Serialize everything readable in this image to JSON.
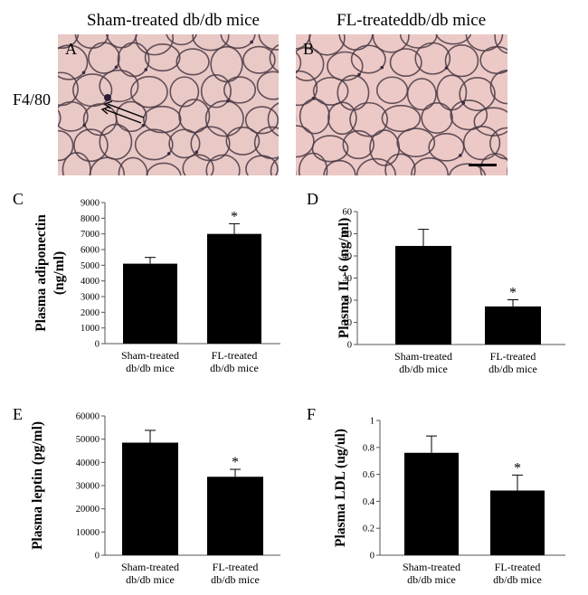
{
  "figure": {
    "col_titles": [
      "Sham-treated db/db mice",
      "FL-treateddb/db mice"
    ],
    "row_label": "F4/80",
    "micrographs": [
      {
        "label": "A",
        "tissue_color": "#e9c9c6",
        "membrane_color": "#4a3a44",
        "annotation": "double-arrow"
      },
      {
        "label": "B",
        "tissue_color": "#ecc9c6",
        "membrane_color": "#4a3a44",
        "annotation": "scale-bar"
      }
    ]
  },
  "chart_data": [
    {
      "panel": "C",
      "type": "bar",
      "ylabel": "Plasma adiponectin (ng/ml)",
      "ylabel_lines": [
        "Plasma adiponectin",
        "(ng/ml)"
      ],
      "categories": [
        [
          "Sham-treated",
          "db/db mice"
        ],
        [
          "FL-treated",
          "db/db mice"
        ]
      ],
      "values": [
        5100,
        7000
      ],
      "errors": [
        400,
        650
      ],
      "significant": [
        false,
        true
      ],
      "ylim": [
        0,
        9000
      ],
      "yticks": [
        0,
        1000,
        2000,
        3000,
        4000,
        5000,
        6000,
        7000,
        8000,
        9000
      ],
      "bar_color": "#000000"
    },
    {
      "panel": "D",
      "type": "bar",
      "ylabel": "Plasma IL-6 (ng/ml)",
      "ylabel_lines": [
        "Plasma IL-6  (ng/ml)"
      ],
      "categories": [
        [
          "Sham-treated",
          "db/db mice"
        ],
        [
          "FL-treated",
          "db/db mice"
        ]
      ],
      "values": [
        44.5,
        17.2
      ],
      "errors": [
        7.5,
        3.0
      ],
      "significant": [
        false,
        true
      ],
      "ylim": [
        0,
        60
      ],
      "yticks": [
        0,
        10,
        20,
        30,
        40,
        50,
        60
      ],
      "bar_color": "#000000"
    },
    {
      "panel": "E",
      "type": "bar",
      "ylabel": "Plasma leptin (pg/ml)",
      "ylabel_lines": [
        "Plasma leptin (pg/ml)"
      ],
      "categories": [
        [
          "Sham-treated",
          "db/db mice"
        ],
        [
          "FL-treated",
          "db/db mice"
        ]
      ],
      "values": [
        48500,
        33800
      ],
      "errors": [
        5300,
        3200
      ],
      "significant": [
        false,
        true
      ],
      "ylim": [
        0,
        60000
      ],
      "yticks": [
        0,
        10000,
        20000,
        30000,
        40000,
        50000,
        60000
      ],
      "bar_color": "#000000"
    },
    {
      "panel": "F",
      "type": "bar",
      "ylabel": "Plasma LDL (ug/ul)",
      "ylabel_lines": [
        "Plasma LDL (ug/ul)"
      ],
      "categories": [
        [
          "Sham-treated",
          "db/db mice"
        ],
        [
          "FL-treated",
          "db/db mice"
        ]
      ],
      "values": [
        0.76,
        0.48
      ],
      "errors": [
        0.125,
        0.115
      ],
      "significant": [
        false,
        true
      ],
      "ylim": [
        0,
        1
      ],
      "yticks": [
        0,
        0.2,
        0.4,
        0.6,
        0.8,
        1
      ],
      "bar_color": "#000000"
    }
  ]
}
